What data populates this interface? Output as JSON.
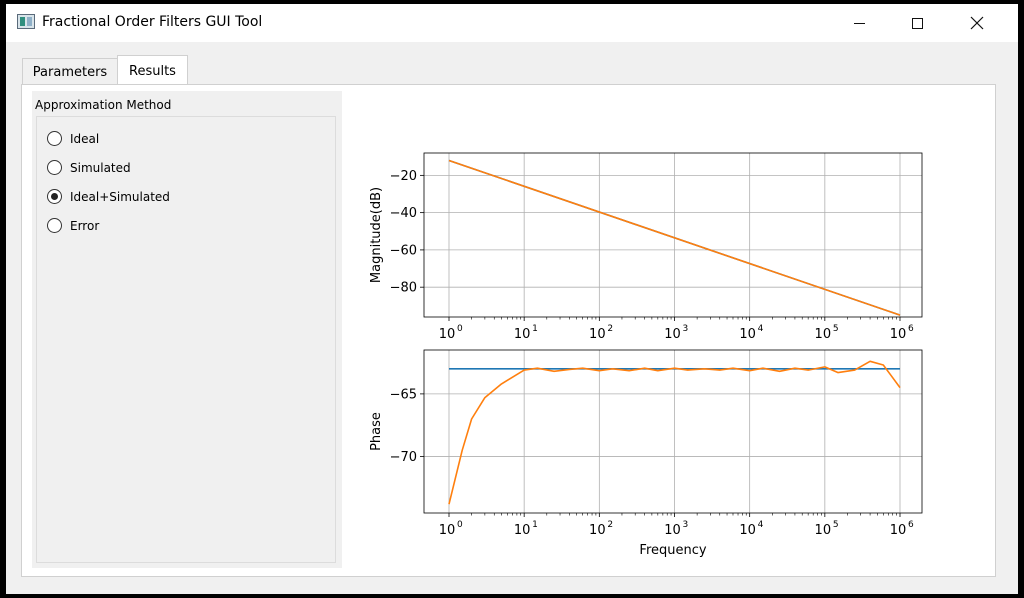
{
  "window": {
    "title": "Fractional Order Filters GUI Tool",
    "controls": [
      "minimize",
      "maximize",
      "close"
    ]
  },
  "tabs": [
    {
      "label": "Parameters",
      "active": false
    },
    {
      "label": "Results",
      "active": true
    }
  ],
  "approximation": {
    "group_label": "Approximation Method",
    "options": [
      {
        "label": "Ideal",
        "checked": false
      },
      {
        "label": "Simulated",
        "checked": false
      },
      {
        "label": "Ideal+Simulated",
        "checked": true
      },
      {
        "label": "Error",
        "checked": false
      }
    ]
  },
  "colors": {
    "ideal": "#1f77b4",
    "simulated": "#ff7f0e",
    "grid": "#b0b0b0"
  },
  "chart_data": [
    {
      "type": "line",
      "xscale": "log",
      "xlim": [
        1,
        1000000
      ],
      "ylabel": "Magnitude(dB)",
      "xlabel": "",
      "yticks": [
        -20,
        -40,
        -60,
        -80
      ],
      "ylim": [
        -96,
        -8
      ],
      "grid": true,
      "series": [
        {
          "color": "#1f77b4",
          "x": [
            1,
            1000000
          ],
          "y": [
            -12,
            -95
          ]
        },
        {
          "color": "#ff7f0e",
          "x": [
            1,
            1000000
          ],
          "y": [
            -12,
            -95
          ]
        }
      ]
    },
    {
      "type": "line",
      "xscale": "log",
      "xlim": [
        1,
        1000000
      ],
      "ylabel": "Phase",
      "xlabel": "Frequency",
      "yticks": [
        -65,
        -70
      ],
      "ylim": [
        -74.5,
        -61.5
      ],
      "grid": true,
      "series": [
        {
          "color": "#1f77b4",
          "x": [
            1,
            1000000
          ],
          "y": [
            -63,
            -63
          ]
        },
        {
          "color": "#ff7f0e",
          "x": [
            1,
            1.5,
            2,
            3,
            5,
            10,
            15,
            25,
            40,
            60,
            100,
            150,
            250,
            400,
            600,
            1000,
            1500,
            2500,
            4000,
            6000,
            10000,
            15000,
            25000,
            40000,
            60000,
            100000,
            150000,
            250000,
            400000,
            600000,
            1000000
          ],
          "y": [
            -73.8,
            -69.5,
            -67,
            -65.3,
            -64.2,
            -63.1,
            -62.95,
            -63.2,
            -63.05,
            -62.95,
            -63.15,
            -63.0,
            -63.15,
            -62.95,
            -63.15,
            -62.95,
            -63.1,
            -63.0,
            -63.1,
            -62.95,
            -63.15,
            -62.95,
            -63.2,
            -62.95,
            -63.1,
            -62.85,
            -63.3,
            -63.1,
            -62.4,
            -62.7,
            -64.5
          ]
        }
      ],
      "xticks": [
        "10^0",
        "10^1",
        "10^2",
        "10^3",
        "10^4",
        "10^5",
        "10^6"
      ]
    }
  ]
}
